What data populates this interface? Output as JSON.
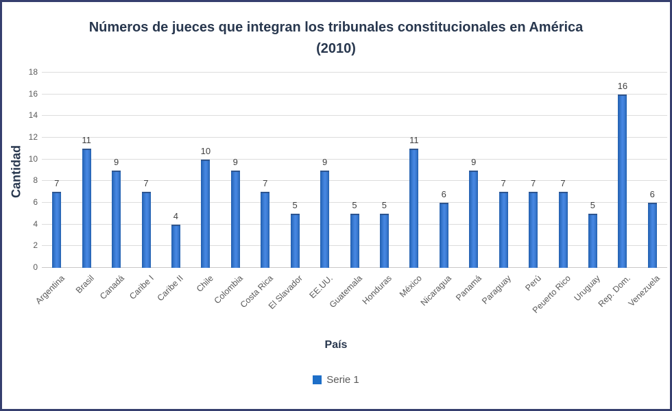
{
  "window": {
    "background": "#ffffff",
    "frame_border": "#363f6e"
  },
  "chart_data": {
    "type": "bar",
    "title_line1": "Números de jueces que integran los tribunales constitucionales en América",
    "title_line2": "(2010)",
    "xlabel": "País",
    "ylabel": "Cantidad",
    "series_name": "Serie 1",
    "categories": [
      "Argentina",
      "Brasil",
      "Canadá",
      "Caribe I",
      "Caribe II",
      "Chile",
      "Colombia",
      "Costa Rica",
      "El Slavador",
      "EE.UU.",
      "Guatemala",
      "Honduras",
      "México",
      "Nicaragua",
      "Panamá",
      "Paraguay",
      "Perú",
      "Peuerto Rico",
      "Uruguay",
      "Rep. Dom.",
      "Venezuela"
    ],
    "values": [
      7,
      11,
      9,
      7,
      4,
      10,
      9,
      7,
      5,
      9,
      5,
      5,
      11,
      6,
      9,
      7,
      7,
      7,
      5,
      16,
      6
    ],
    "ylim": [
      0,
      18
    ],
    "yticks": [
      0,
      2,
      4,
      6,
      8,
      10,
      12,
      14,
      16,
      18
    ],
    "grid": true,
    "data_labels": true,
    "legend_position": "bottom",
    "colors": {
      "background": "#ffffff",
      "frame_border": "#363f6e",
      "title_text": "#28374e",
      "axis_title_text": "#28374e",
      "tick_text": "#595959",
      "category_text": "#595959",
      "data_label_text": "#3f3f3f",
      "gridline": "#dcdcdc",
      "baseline": "#c9c7c7",
      "bar_fill_mid": "#4787e2",
      "bar_fill_edge": "#225fae",
      "bar_top_edge": "#2d5590",
      "legend_swatch": "#1e6fc8"
    }
  }
}
